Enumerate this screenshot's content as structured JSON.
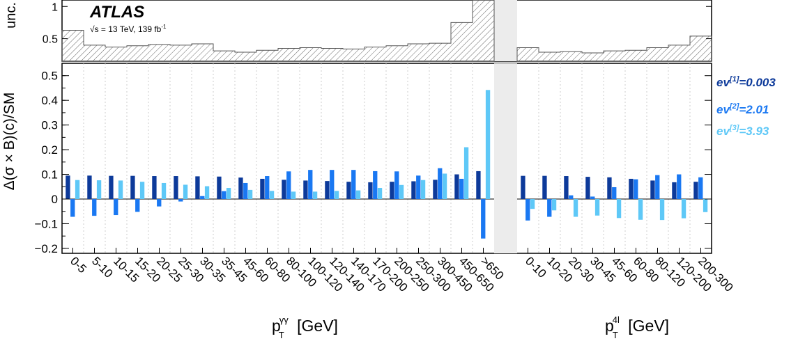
{
  "chart_data": [
    {
      "type": "step",
      "ylabel": "unc.",
      "experiment": "ATLAS",
      "energy_label": "√s = 13 TeV, 139 fb",
      "energy_label_sup": "-1",
      "ylim": [
        0.15,
        1.1
      ],
      "yticks": [
        "0.5",
        "1"
      ],
      "left_values": [
        0.63,
        0.4,
        0.37,
        0.39,
        0.41,
        0.4,
        0.42,
        0.31,
        0.29,
        0.32,
        0.35,
        0.36,
        0.35,
        0.34,
        0.37,
        0.39,
        0.42,
        0.43,
        0.75,
        1.1
      ],
      "right_values": [
        0.36,
        0.29,
        0.3,
        0.28,
        0.31,
        0.32,
        0.36,
        0.4,
        0.54
      ]
    },
    {
      "type": "bar",
      "ylabel": "Δ(σ × B)(c)/SM",
      "ylim": [
        -0.22,
        0.55
      ],
      "yticks": [
        "−0.2",
        "−0.1",
        "0",
        "0.1",
        "0.2",
        "0.3",
        "0.4",
        "0.5"
      ],
      "legend_position": "right",
      "series": [
        {
          "name": "ev",
          "sup": "[1]",
          "value_label": "=0.003",
          "color": "#0d3a9a"
        },
        {
          "name": "ev",
          "sup": "[2]",
          "value_label": "=2.01",
          "color": "#1a78f2"
        },
        {
          "name": "ev",
          "sup": "[3]",
          "value_label": "=3.93",
          "color": "#5ec8f7"
        }
      ],
      "left_panel": {
        "xlabel": "p",
        "xlabel_sub": "T",
        "xlabel_sup": "γγ",
        "xlabel_unit": " [GeV]",
        "categories": [
          "0-5",
          "5-10",
          "10-15",
          "15-20",
          "20-25",
          "25-30",
          "30-35",
          "35-45",
          "45-60",
          "60-80",
          "80-100",
          "100-120",
          "120-140",
          "140-170",
          "170-200",
          "200-250",
          "250-300",
          "300-450",
          "450-650",
          ">650"
        ],
        "values": [
          [
            0.095,
            0.095,
            0.094,
            0.094,
            0.093,
            0.093,
            0.092,
            0.091,
            0.087,
            0.082,
            0.078,
            0.075,
            0.073,
            0.07,
            0.068,
            0.07,
            0.072,
            0.078,
            0.1,
            0.113
          ],
          [
            -0.072,
            -0.068,
            -0.065,
            -0.052,
            -0.03,
            -0.01,
            0.012,
            0.032,
            0.065,
            0.093,
            0.112,
            0.118,
            0.118,
            0.118,
            0.113,
            0.112,
            0.095,
            0.125,
            0.082,
            -0.16
          ],
          [
            0.077,
            0.076,
            0.075,
            0.07,
            0.065,
            0.058,
            0.052,
            0.045,
            0.037,
            0.033,
            0.03,
            0.03,
            0.033,
            0.035,
            0.045,
            0.057,
            0.077,
            0.103,
            0.21,
            0.442
          ]
        ]
      },
      "right_panel": {
        "xlabel": "p",
        "xlabel_sub": "T",
        "xlabel_sup": "4l",
        "xlabel_unit": " [GeV]",
        "categories": [
          "0-10",
          "10-20",
          "20-30",
          "30-45",
          "45-60",
          "60-80",
          "80-120",
          "120-200",
          "200-300"
        ],
        "values": [
          [
            0.094,
            0.094,
            0.093,
            0.09,
            0.088,
            0.082,
            0.075,
            0.068,
            0.07
          ],
          [
            -0.087,
            -0.072,
            0.015,
            0.01,
            0.048,
            0.08,
            0.097,
            0.1,
            0.088
          ],
          [
            -0.04,
            -0.046,
            -0.072,
            -0.067,
            -0.077,
            -0.084,
            -0.085,
            -0.078,
            -0.053
          ]
        ]
      }
    }
  ]
}
